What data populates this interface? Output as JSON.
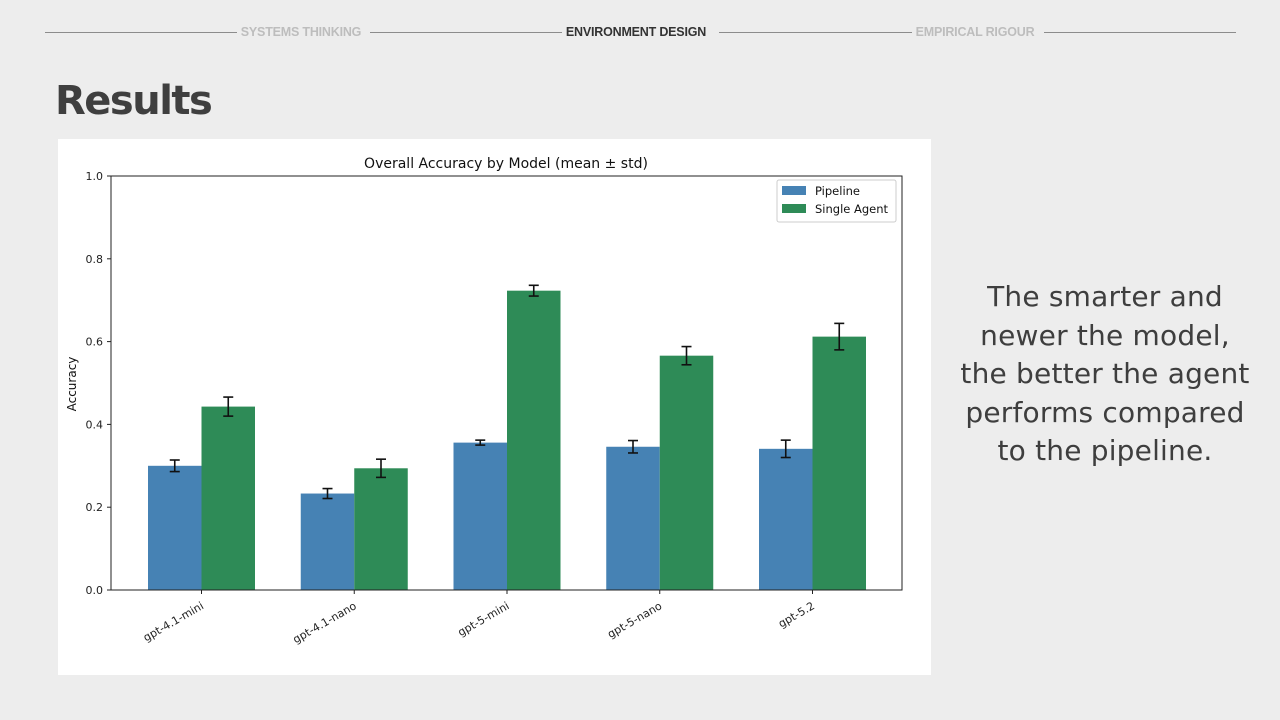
{
  "nav": {
    "items": [
      {
        "label": "SYSTEMS THINKING",
        "active": false
      },
      {
        "label": "ENVIRONMENT DESIGN",
        "active": true
      },
      {
        "label": "EMPIRICAL RIGOUR",
        "active": false
      }
    ]
  },
  "slide": {
    "title": "Results",
    "caption_lines": [
      "The smarter and",
      "newer the model,",
      "the better the agent",
      "performs compared",
      "to the pipeline."
    ]
  },
  "colors": {
    "pipeline": "#4682b4",
    "single_agent": "#2e8b57",
    "background": "#ededed"
  },
  "chart_data": {
    "type": "bar",
    "title": "Overall Accuracy by Model (mean ± std)",
    "xlabel": "",
    "ylabel": "Accuracy",
    "ylim": [
      0,
      1.0
    ],
    "yticks": [
      "0.0",
      "0.2",
      "0.4",
      "0.6",
      "0.8",
      "1.0"
    ],
    "categories": [
      "gpt-4.1-mini",
      "gpt-4.1-nano",
      "gpt-5-mini",
      "gpt-5-nano",
      "gpt-5.2"
    ],
    "legend_position": "top-right",
    "grid": false,
    "series": [
      {
        "name": "Pipeline",
        "values": [
          0.3,
          0.233,
          0.356,
          0.346,
          0.341
        ],
        "errors": [
          0.014,
          0.012,
          0.006,
          0.015,
          0.021
        ]
      },
      {
        "name": "Single Agent",
        "values": [
          0.443,
          0.294,
          0.723,
          0.566,
          0.612
        ],
        "errors": [
          0.023,
          0.022,
          0.013,
          0.022,
          0.032
        ]
      }
    ]
  }
}
